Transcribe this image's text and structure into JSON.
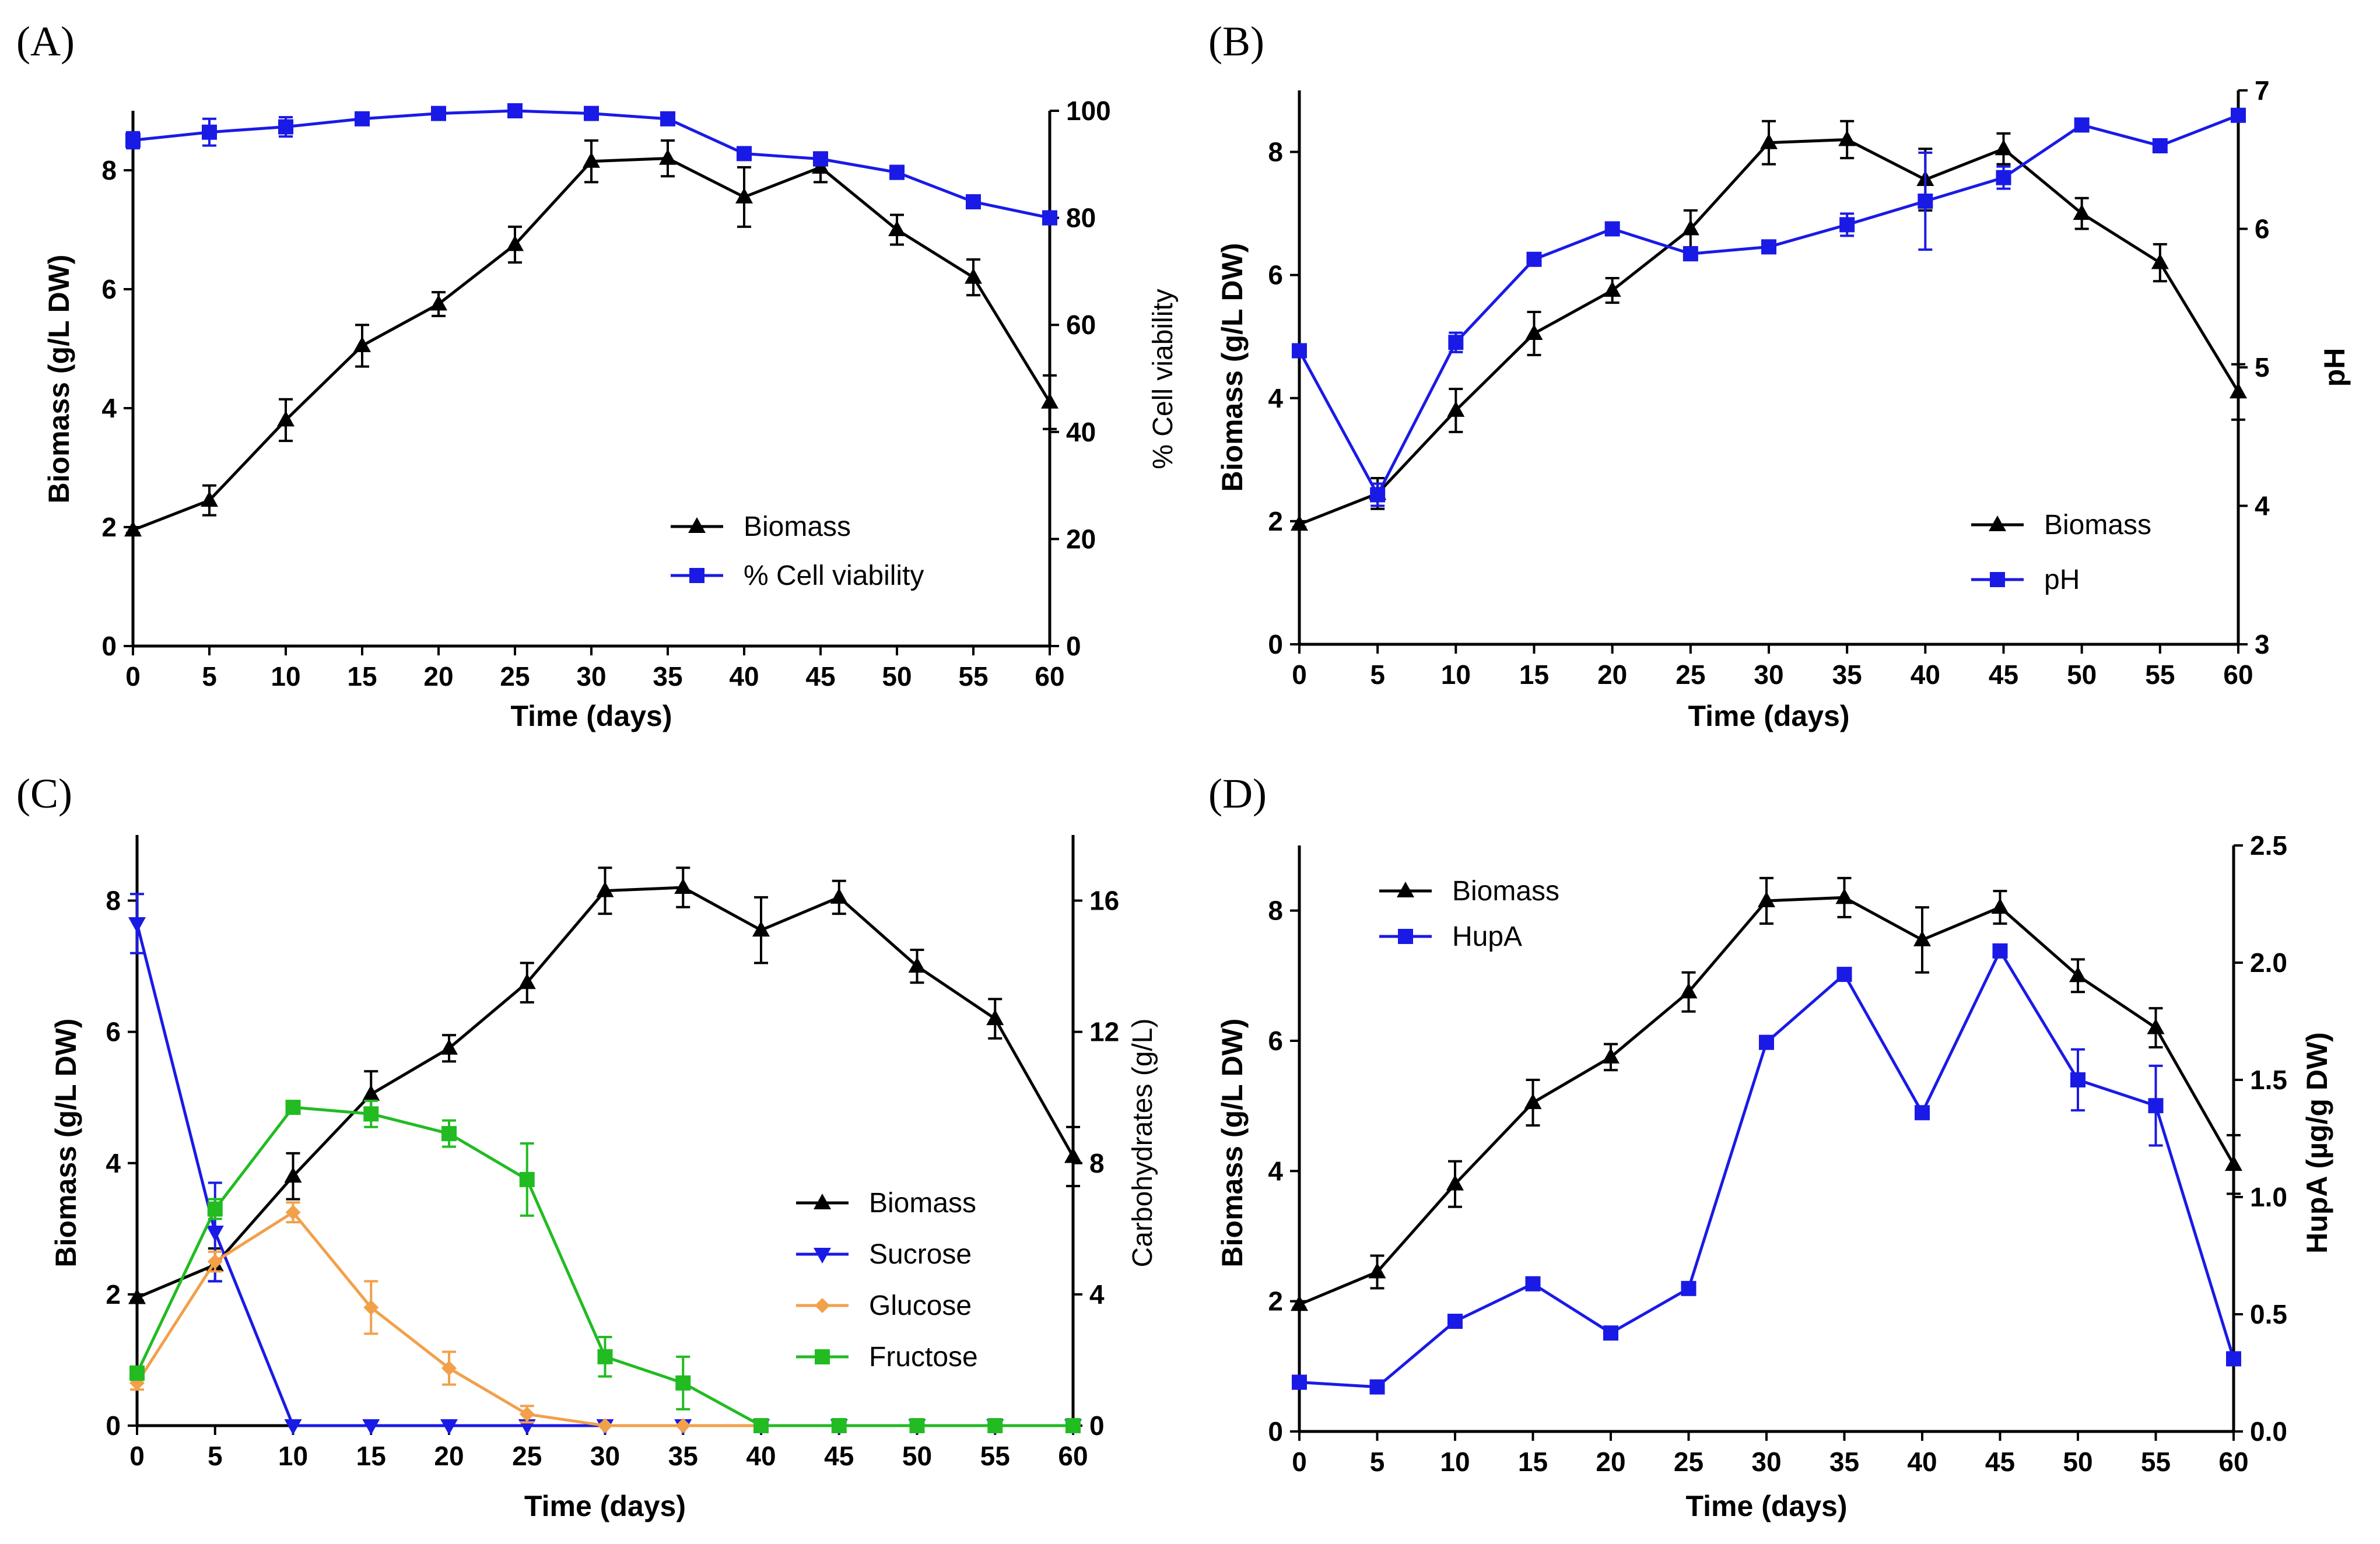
{
  "chart_data": [
    {
      "panel": "(A)",
      "type": "line",
      "xlabel": "Time (days)",
      "ylabel": "Biomass (g/L DW)",
      "y2label": "% Cell viability",
      "x": [
        0,
        5,
        10,
        15,
        20,
        25,
        30,
        35,
        40,
        45,
        50,
        55,
        60
      ],
      "xticks": [
        0,
        5,
        10,
        15,
        20,
        25,
        30,
        35,
        40,
        45,
        50,
        55,
        60
      ],
      "ylim": [
        0,
        9
      ],
      "yticks": [
        0,
        2,
        4,
        6,
        8
      ],
      "y2lim": [
        0,
        100
      ],
      "y2ticks": [
        0,
        20,
        40,
        60,
        80,
        100
      ],
      "legend_position": "lower-right",
      "series": [
        {
          "name": "Biomass",
          "axis": "left",
          "color": "#000000",
          "marker": "triangle-up",
          "values": [
            1.95,
            2.45,
            3.8,
            5.05,
            5.75,
            6.75,
            8.15,
            8.2,
            7.55,
            8.05,
            7.0,
            6.2,
            4.1
          ],
          "errors": [
            0.05,
            0.25,
            0.35,
            0.35,
            0.2,
            0.3,
            0.35,
            0.3,
            0.5,
            0.25,
            0.25,
            0.3,
            0.45
          ]
        },
        {
          "name": "% Cell viability",
          "axis": "right",
          "color": "#1a1ae6",
          "marker": "square",
          "values": [
            94.5,
            96,
            97,
            98.5,
            99.5,
            100,
            99.5,
            98.5,
            92,
            91,
            88.5,
            83,
            80
          ],
          "errors": [
            1.5,
            2.5,
            1.8,
            0.8,
            0.5,
            0.5,
            0.5,
            0.8,
            0.8,
            0.8,
            1.2,
            0.8,
            0.8
          ]
        }
      ]
    },
    {
      "panel": "(B)",
      "type": "line",
      "xlabel": "Time (days)",
      "ylabel": "Biomass (g/L DW)",
      "y2label": "pH",
      "x": [
        0,
        5,
        10,
        15,
        20,
        25,
        30,
        35,
        40,
        45,
        50,
        55,
        60
      ],
      "xticks": [
        0,
        5,
        10,
        15,
        20,
        25,
        30,
        35,
        40,
        45,
        50,
        55,
        60
      ],
      "ylim": [
        0,
        9
      ],
      "yticks": [
        0,
        2,
        4,
        6,
        8
      ],
      "y2lim": [
        3,
        7
      ],
      "y2ticks": [
        3,
        4,
        5,
        6,
        7
      ],
      "legend_position": "lower-right",
      "series": [
        {
          "name": "Biomass",
          "axis": "left",
          "color": "#000000",
          "marker": "triangle-up",
          "values": [
            1.95,
            2.45,
            3.8,
            5.05,
            5.75,
            6.75,
            8.15,
            8.2,
            7.55,
            8.05,
            7.0,
            6.2,
            4.1
          ],
          "errors": [
            0.05,
            0.25,
            0.35,
            0.35,
            0.2,
            0.3,
            0.35,
            0.3,
            0.5,
            0.25,
            0.25,
            0.3,
            0.45
          ]
        },
        {
          "name": "pH",
          "axis": "right",
          "color": "#1a1ae6",
          "marker": "square",
          "values": [
            5.12,
            4.08,
            5.18,
            5.78,
            6.0,
            5.82,
            5.87,
            6.03,
            6.2,
            6.37,
            6.75,
            6.6,
            6.82
          ],
          "errors": [
            0.02,
            0.08,
            0.07,
            0.03,
            0.04,
            0.03,
            0.04,
            0.08,
            0.35,
            0.08,
            0.03,
            0.02,
            0.02
          ]
        }
      ]
    },
    {
      "panel": "(C)",
      "type": "line",
      "xlabel": "Time (days)",
      "ylabel": "Biomass (g/L DW)",
      "y2label": "Carbohydrates (g/L)",
      "x": [
        0,
        5,
        10,
        15,
        20,
        25,
        30,
        35,
        40,
        45,
        50,
        55,
        60
      ],
      "xticks": [
        0,
        5,
        10,
        15,
        20,
        25,
        30,
        35,
        40,
        45,
        50,
        55,
        60
      ],
      "ylim": [
        0,
        9
      ],
      "yticks": [
        0,
        2,
        4,
        6,
        8
      ],
      "y2lim": [
        0,
        18
      ],
      "y2ticks": [
        0,
        4,
        8,
        12,
        16
      ],
      "legend_position": "lower-right",
      "series": [
        {
          "name": "Biomass",
          "axis": "left",
          "color": "#000000",
          "marker": "triangle-up",
          "values": [
            1.95,
            2.45,
            3.8,
            5.05,
            5.75,
            6.75,
            8.15,
            8.2,
            7.55,
            8.05,
            7.0,
            6.2,
            4.1
          ],
          "errors": [
            0.05,
            0.25,
            0.35,
            0.35,
            0.2,
            0.3,
            0.35,
            0.3,
            0.5,
            0.25,
            0.25,
            0.3,
            0.45
          ]
        },
        {
          "name": "Sucrose",
          "axis": "right",
          "color": "#1a1ae6",
          "marker": "triangle-down",
          "values": [
            15.3,
            5.9,
            0,
            0,
            0,
            0,
            0,
            0,
            0,
            0,
            0,
            0,
            0
          ],
          "errors": [
            0.9,
            1.5,
            0,
            0,
            0,
            0,
            0,
            0,
            0,
            0,
            0,
            0,
            0
          ]
        },
        {
          "name": "Glucose",
          "axis": "right",
          "color": "#f2a04a",
          "marker": "diamond",
          "values": [
            1.3,
            5.0,
            6.5,
            3.6,
            1.75,
            0.35,
            0,
            0,
            0,
            0,
            0,
            0,
            0
          ],
          "errors": [
            0.2,
            0.3,
            0.3,
            0.8,
            0.5,
            0.25,
            0,
            0,
            0,
            0,
            0,
            0,
            0
          ]
        },
        {
          "name": "Fructose",
          "axis": "right",
          "color": "#22bb22",
          "marker": "square",
          "values": [
            1.6,
            6.6,
            9.7,
            9.5,
            8.9,
            7.5,
            2.1,
            1.3,
            0,
            0,
            0,
            0,
            0
          ],
          "errors": [
            0.2,
            0.3,
            0.1,
            0.4,
            0.4,
            1.1,
            0.6,
            0.8,
            0,
            0,
            0,
            0,
            0
          ]
        }
      ]
    },
    {
      "panel": "(D)",
      "type": "line",
      "xlabel": "Time (days)",
      "ylabel": "Biomass (g/L DW)",
      "y2label": "HupA (µg/g DW)",
      "x": [
        0,
        5,
        10,
        15,
        20,
        25,
        30,
        35,
        40,
        45,
        50,
        55,
        60
      ],
      "xticks": [
        0,
        5,
        10,
        15,
        20,
        25,
        30,
        35,
        40,
        45,
        50,
        55,
        60
      ],
      "ylim": [
        0,
        9
      ],
      "yticks": [
        0,
        2,
        4,
        6,
        8
      ],
      "y2lim": [
        0,
        2.5
      ],
      "y2ticks": [
        0.0,
        0.5,
        1.0,
        1.5,
        2.0,
        2.5
      ],
      "y2ticklabels": [
        "0.0",
        "0.5",
        "1.0",
        "1.5",
        "2.0",
        "2.5"
      ],
      "legend_position": "top-left",
      "series": [
        {
          "name": "Biomass",
          "axis": "left",
          "color": "#000000",
          "marker": "triangle-up",
          "values": [
            1.95,
            2.45,
            3.8,
            5.05,
            5.75,
            6.75,
            8.15,
            8.2,
            7.55,
            8.05,
            7.0,
            6.2,
            4.1
          ],
          "errors": [
            0.05,
            0.25,
            0.35,
            0.35,
            0.2,
            0.3,
            0.35,
            0.3,
            0.5,
            0.25,
            0.25,
            0.3,
            0.45
          ]
        },
        {
          "name": "HupA",
          "axis": "right",
          "color": "#1a1ae6",
          "marker": "square",
          "values": [
            0.21,
            0.19,
            0.47,
            0.63,
            0.42,
            0.61,
            1.66,
            1.95,
            1.36,
            2.05,
            1.5,
            1.39,
            0.31
          ],
          "errors": [
            0,
            0,
            0,
            0,
            0,
            0,
            0,
            0,
            0,
            0,
            0.13,
            0.17,
            0
          ]
        }
      ]
    }
  ]
}
